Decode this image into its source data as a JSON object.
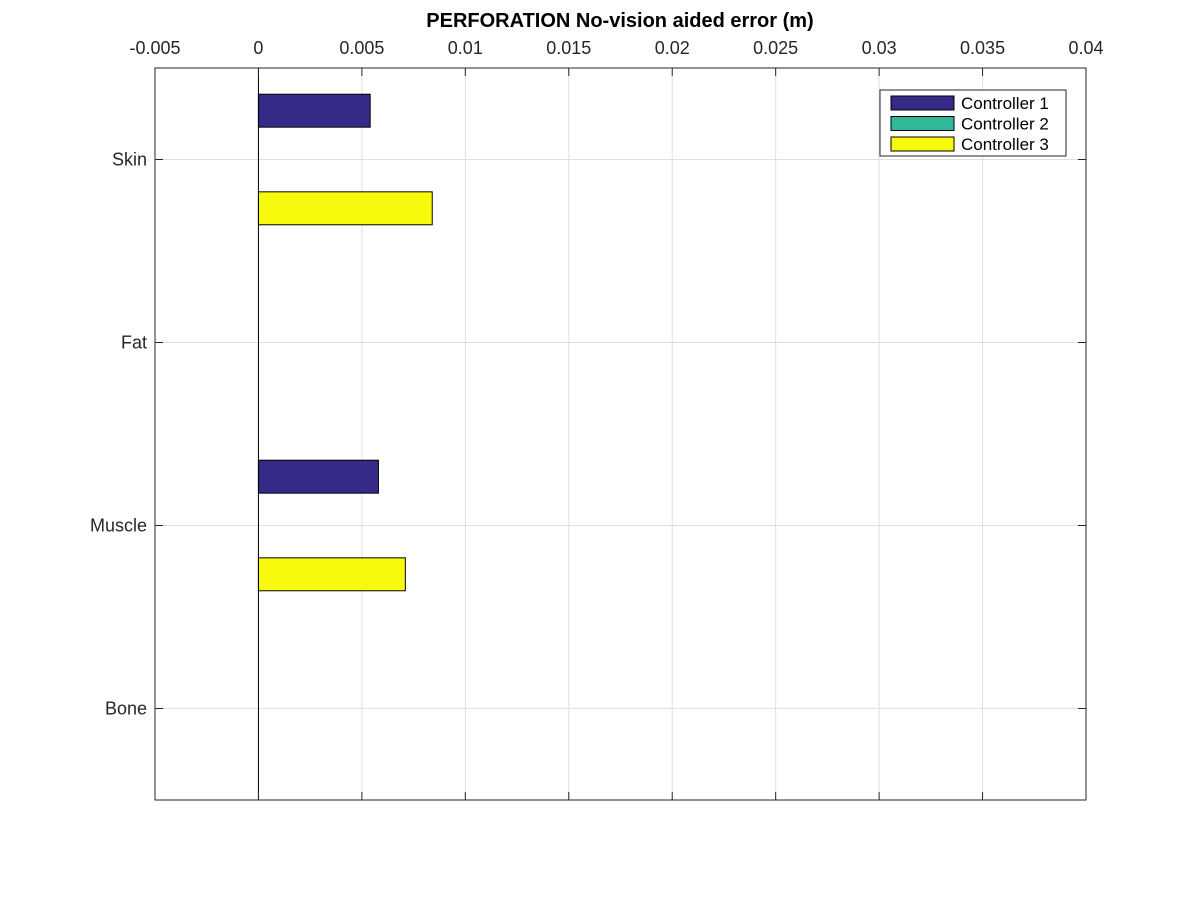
{
  "chart_data": {
    "type": "bar",
    "orientation": "horizontal",
    "title": "PERFORATION No-vision aided error (m)",
    "xlabel": "",
    "ylabel": "",
    "categories": [
      "Skin",
      "Fat",
      "Muscle",
      "Bone"
    ],
    "series": [
      {
        "name": "Controller 1",
        "color": "#352a87",
        "values": [
          0.0054,
          0,
          0.0058,
          0
        ]
      },
      {
        "name": "Controller 2",
        "color": "#31b89a",
        "values": [
          0,
          0,
          0,
          0
        ]
      },
      {
        "name": "Controller 3",
        "color": "#f8fa0d",
        "values": [
          0.0084,
          0,
          0.0071,
          0
        ]
      }
    ],
    "xlim": [
      -0.005,
      0.04
    ],
    "x_ticks": [
      "-0.005",
      "0",
      "0.005",
      "0.01",
      "0.015",
      "0.02",
      "0.025",
      "0.03",
      "0.035",
      "0.04"
    ],
    "x_axis_location": "top",
    "y_direction": "reverse",
    "grid": true,
    "legend_position": "top-right"
  }
}
